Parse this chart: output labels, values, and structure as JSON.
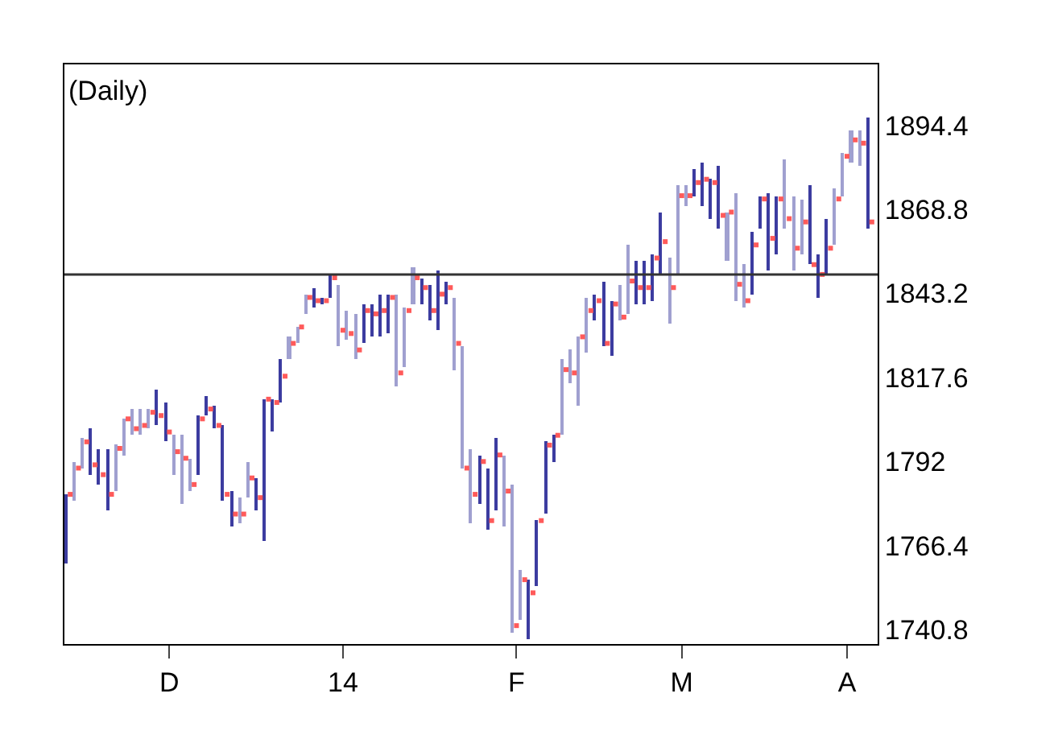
{
  "chart_data": {
    "type": "bar",
    "title": "(Daily)",
    "categories": [
      null,
      null,
      null,
      null,
      null,
      null,
      null,
      null,
      null,
      null,
      null,
      null,
      "D",
      null,
      null,
      null,
      null,
      null,
      null,
      null,
      null,
      null,
      null,
      null,
      null,
      null,
      null,
      null,
      null,
      null,
      null,
      null,
      null,
      "14",
      null,
      null,
      null,
      null,
      null,
      null,
      null,
      null,
      null,
      null,
      null,
      null,
      null,
      null,
      null,
      null,
      null,
      null,
      null,
      null,
      "F",
      null,
      null,
      null,
      null,
      null,
      null,
      null,
      null,
      null,
      null,
      null,
      null,
      null,
      null,
      null,
      null,
      null,
      null,
      null,
      "M",
      null,
      null,
      null,
      null,
      null,
      null,
      null,
      null,
      null,
      null,
      null,
      null,
      null,
      null,
      null,
      null,
      null,
      null,
      null,
      "A",
      null,
      null,
      null
    ],
    "series": [
      {
        "base": [
          1761,
          1780,
          1790,
          1788,
          1785,
          1777,
          1783,
          1794,
          1800,
          1800,
          1802,
          1803,
          1798,
          1788,
          1779,
          1783,
          1788,
          1806,
          1802,
          1780,
          1772,
          1773,
          1781,
          1777,
          1768,
          1801,
          1810,
          1823,
          1828,
          1837,
          1839,
          1840,
          1842,
          1827,
          1829,
          1823,
          1828,
          1830,
          1830,
          1831,
          1815,
          1821,
          1840,
          1840,
          1835,
          1832,
          1840,
          1820,
          1790,
          1773,
          1779,
          1771,
          1777,
          1772,
          1740,
          1744,
          1738,
          1754,
          1776,
          1792,
          1800,
          1816,
          1809,
          1825,
          1835,
          1827,
          1824,
          1835,
          1837,
          1840,
          1840,
          1841,
          1849,
          1834,
          1849,
          1870,
          1873,
          1870,
          1866,
          1863,
          1853,
          1841,
          1839,
          1843,
          1863,
          1850,
          1855,
          1863,
          1850,
          1855,
          1852,
          1842,
          1849,
          1858,
          1873,
          1883,
          1882,
          1863
        ],
        "values": [
          21,
          12,
          9,
          14,
          11,
          19,
          14,
          11,
          8,
          8,
          6,
          11,
          12,
          12,
          21,
          10,
          18,
          6,
          7,
          23,
          11,
          8,
          11,
          10,
          43,
          10,
          13,
          7,
          5,
          6,
          6,
          2,
          7,
          19,
          9,
          14,
          12,
          10,
          13,
          12,
          28,
          18,
          11,
          8,
          11,
          18,
          7,
          22,
          37,
          23,
          15,
          19,
          22,
          22,
          45,
          15,
          18,
          20,
          22,
          8,
          23,
          10,
          21,
          17,
          8,
          20,
          17,
          11,
          21,
          13,
          13,
          14,
          19,
          20,
          27,
          6,
          8,
          13,
          12,
          19,
          15,
          33,
          13,
          19,
          10,
          24,
          18,
          21,
          23,
          17,
          24,
          13,
          17,
          17,
          13,
          10,
          11,
          34
        ],
        "colors": [
          "#3c3ca0",
          "#a0a0d0",
          "#a0a0d0",
          "#3c3ca0",
          "#3c3ca0",
          "#3c3ca0",
          "#a0a0d0",
          "#a0a0d0",
          "#a0a0d0",
          "#a0a0d0",
          "#a0a0d0",
          "#3c3ca0",
          "#3c3ca0",
          "#a0a0d0",
          "#a0a0d0",
          "#a0a0d0",
          "#3c3ca0",
          "#3c3ca0",
          "#3c3ca0",
          "#3c3ca0",
          "#3c3ca0",
          "#a0a0d0",
          "#a0a0d0",
          "#3c3ca0",
          "#3c3ca0",
          "#3c3ca0",
          "#3c3ca0",
          "#a0a0d0",
          "#a0a0d0",
          "#a0a0d0",
          "#3c3ca0",
          "#3c3ca0",
          "#3c3ca0",
          "#a0a0d0",
          "#a0a0d0",
          "#a0a0d0",
          "#3c3ca0",
          "#3c3ca0",
          "#3c3ca0",
          "#3c3ca0",
          "#a0a0d0",
          "#a0a0d0",
          "#a0a0d0",
          "#3c3ca0",
          "#3c3ca0",
          "#3c3ca0",
          "#3c3ca0",
          "#a0a0d0",
          "#a0a0d0",
          "#a0a0d0",
          "#3c3ca0",
          "#3c3ca0",
          "#3c3ca0",
          "#a0a0d0",
          "#a0a0d0",
          "#a0a0d0",
          "#3c3ca0",
          "#3c3ca0",
          "#3c3ca0",
          "#3c3ca0",
          "#a0a0d0",
          "#a0a0d0",
          "#a0a0d0",
          "#a0a0d0",
          "#3c3ca0",
          "#3c3ca0",
          "#3c3ca0",
          "#a0a0d0",
          "#a0a0d0",
          "#3c3ca0",
          "#3c3ca0",
          "#3c3ca0",
          "#3c3ca0",
          "#a0a0d0",
          "#a0a0d0",
          "#a0a0d0",
          "#3c3ca0",
          "#3c3ca0",
          "#3c3ca0",
          "#3c3ca0",
          "#a0a0d0",
          "#a0a0d0",
          "#a0a0d0",
          "#3c3ca0",
          "#3c3ca0",
          "#3c3ca0",
          "#3c3ca0",
          "#a0a0d0",
          "#a0a0d0",
          "#a0a0d0",
          "#3c3ca0",
          "#3c3ca0",
          "#3c3ca0",
          "#a0a0d0",
          "#a0a0d0",
          "#a0a0d0",
          "#a0a0d0",
          "#3c3ca0"
        ]
      },
      {
        "type": "scatter",
        "color": "#ff5a5a",
        "values": [
          1782,
          1790,
          1798,
          1791,
          1788,
          1782,
          1796,
          1805,
          1802,
          1803,
          1807,
          1806,
          1801,
          1795,
          1793,
          1785,
          1805,
          1808,
          1803,
          1782,
          1776,
          1776,
          1787,
          1781,
          1811,
          1810,
          1818,
          1828,
          1833,
          1842,
          1841,
          1841,
          1848,
          1832,
          1831,
          1826,
          1838,
          1837,
          1838,
          1842,
          1819,
          1838,
          1848,
          1845,
          1838,
          1843,
          1845,
          1828,
          1790,
          1782,
          1792,
          1774,
          1794,
          1783,
          1742,
          1756,
          1752,
          1774,
          1797,
          1800,
          1820,
          1819,
          1830,
          1838,
          1841,
          1828,
          1840,
          1836,
          1847,
          1845,
          1845,
          1854,
          1859,
          1845,
          1873,
          1873,
          1877,
          1878,
          1877,
          1867,
          1868,
          1846,
          1841,
          1858,
          1872,
          1860,
          1872,
          1866,
          1857,
          1865,
          1852,
          1849,
          1857,
          1872,
          1885,
          1890,
          1889,
          1865
        ]
      }
    ],
    "ylim": [
      1736.4,
      1913
    ],
    "yticks": [
      1740.8,
      1766.4,
      1792,
      1817.6,
      1843.2,
      1868.8,
      1894.4
    ],
    "ref_lines": [
      {
        "axis": "y",
        "value": 1849,
        "color": "#333333"
      }
    ]
  }
}
